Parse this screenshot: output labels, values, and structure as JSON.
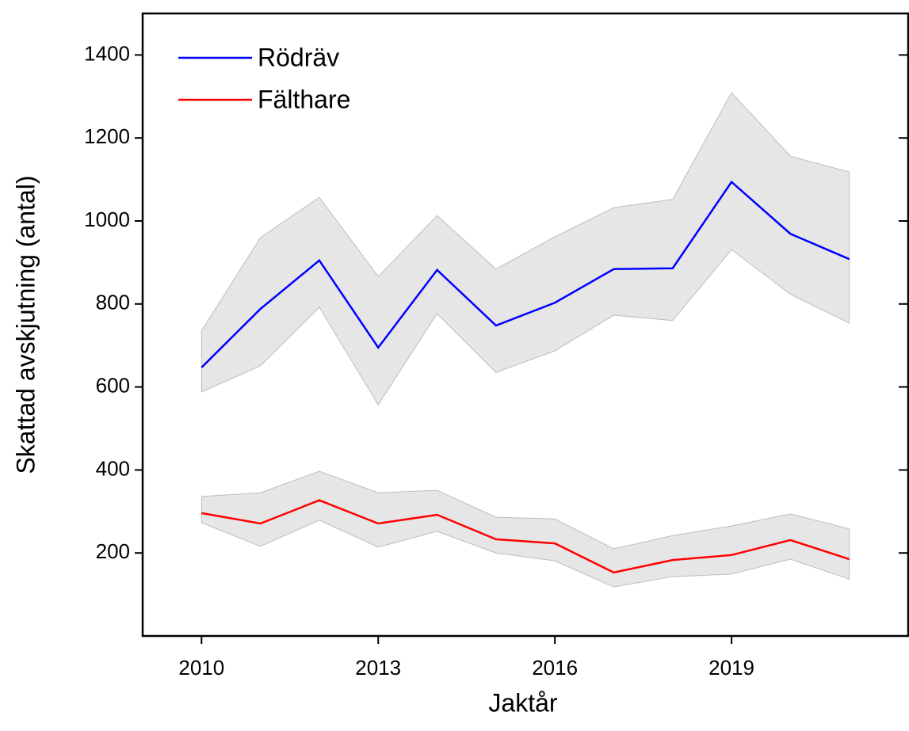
{
  "chart_data": {
    "type": "line",
    "x_label": "Jaktår",
    "y_label": "Skattad avskjutning (antal)",
    "x": [
      2010,
      2011,
      2012,
      2013,
      2014,
      2015,
      2016,
      2017,
      2018,
      2019,
      2020,
      2021
    ],
    "series": [
      {
        "name": "Rödräv",
        "color": "#0000ff",
        "band_color": "#e6e6e6",
        "values": [
          647,
          788,
          905,
          695,
          882,
          748,
          803,
          884,
          886,
          1094,
          969,
          908
        ],
        "lower": [
          588,
          651,
          792,
          557,
          777,
          635,
          687,
          773,
          760,
          931,
          823,
          754
        ],
        "upper": [
          735,
          960,
          1057,
          866,
          1013,
          884,
          962,
          1032,
          1052,
          1309,
          1156,
          1118
        ]
      },
      {
        "name": "Fälthare",
        "color": "#ff0000",
        "band_color": "#e6e6e6",
        "values": [
          296,
          271,
          327,
          271,
          292,
          233,
          223,
          153,
          183,
          195,
          231,
          185
        ],
        "lower": [
          273,
          216,
          279,
          214,
          252,
          200,
          181,
          118,
          143,
          149,
          185,
          137
        ],
        "upper": [
          336,
          345,
          397,
          345,
          351,
          286,
          282,
          210,
          242,
          265,
          294,
          258
        ]
      }
    ],
    "xlim": [
      2009,
      2022
    ],
    "xticks": [
      2010,
      2013,
      2016,
      2019
    ],
    "ylim": [
      0,
      1500
    ],
    "yticks": [
      200,
      400,
      600,
      800,
      1000,
      1200,
      1400
    ],
    "legend": "upper left"
  }
}
